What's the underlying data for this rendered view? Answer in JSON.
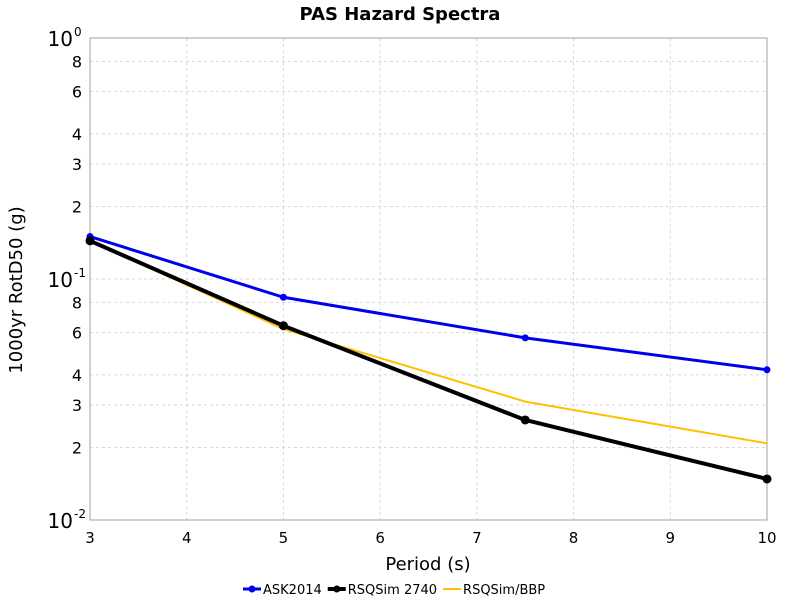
{
  "chart_data": {
    "type": "line",
    "title": "PAS Hazard Spectra",
    "xlabel": "Period (s)",
    "ylabel": "1000yr RotD50 (g)",
    "xlim": [
      3,
      10
    ],
    "ylim": [
      0.01,
      1
    ],
    "yscale": "log",
    "grid": true,
    "legend_position": "bottom",
    "x_ticks": [
      "3",
      "4",
      "5",
      "6",
      "7",
      "8",
      "9",
      "10"
    ],
    "y_major_ticks": [
      {
        "value": 1,
        "base": "10",
        "exp": "0"
      },
      {
        "value": 0.1,
        "base": "10",
        "exp": "-1"
      },
      {
        "value": 0.01,
        "base": "10",
        "exp": "-2"
      }
    ],
    "y_minor_ticks": [
      {
        "value": 0.8,
        "label": "8"
      },
      {
        "value": 0.6,
        "label": "6"
      },
      {
        "value": 0.4,
        "label": "4"
      },
      {
        "value": 0.3,
        "label": "3"
      },
      {
        "value": 0.2,
        "label": "2"
      },
      {
        "value": 0.08,
        "label": "8"
      },
      {
        "value": 0.06,
        "label": "6"
      },
      {
        "value": 0.04,
        "label": "4"
      },
      {
        "value": 0.03,
        "label": "3"
      },
      {
        "value": 0.02,
        "label": "2"
      }
    ],
    "series": [
      {
        "name": "ASK2014",
        "color": "#0000ee",
        "markers": true,
        "stroke_width": 3,
        "x": [
          3,
          5,
          7.5,
          10
        ],
        "y": [
          0.15,
          0.084,
          0.057,
          0.042
        ]
      },
      {
        "name": "RSQSim 2740",
        "color": "#000000",
        "markers": true,
        "stroke_width": 4,
        "x": [
          3,
          5,
          7.5,
          10
        ],
        "y": [
          0.144,
          0.064,
          0.026,
          0.0148
        ]
      },
      {
        "name": "RSQSim/BBP",
        "color": "#ffc000",
        "markers": false,
        "stroke_width": 2,
        "x": [
          3,
          5,
          7.5,
          10
        ],
        "y": [
          0.144,
          0.062,
          0.031,
          0.0208
        ]
      }
    ]
  }
}
